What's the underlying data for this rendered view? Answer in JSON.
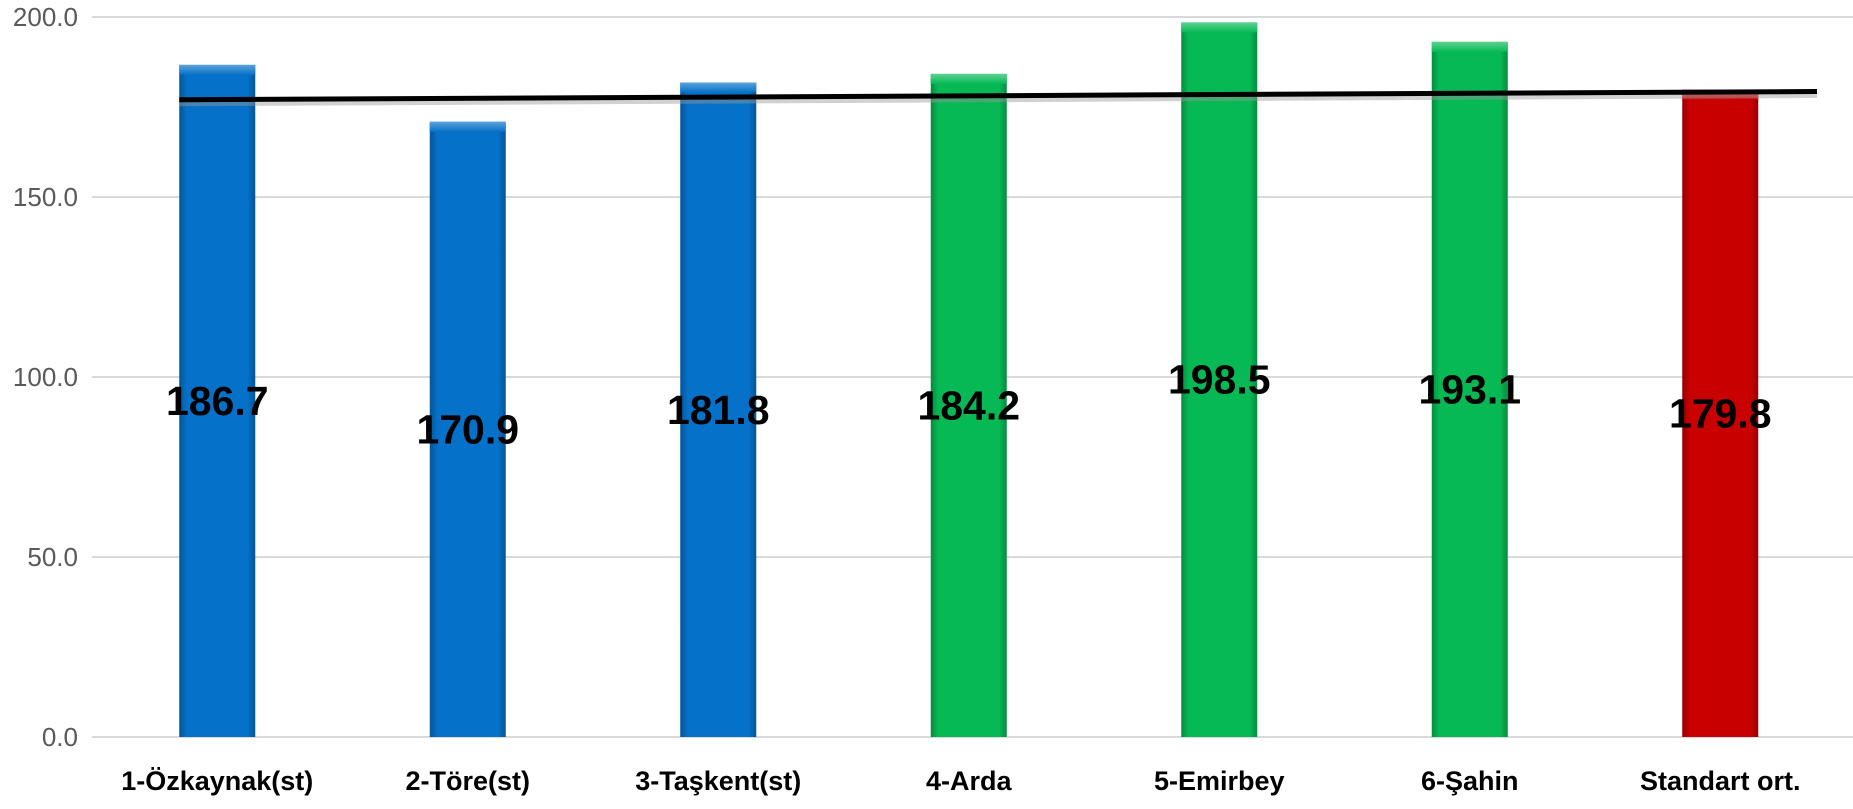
{
  "chart_data": {
    "type": "bar",
    "title": "",
    "xlabel": "",
    "ylabel": "",
    "ylim": [
      0,
      200
    ],
    "yticks": [
      "0.0",
      "50.0",
      "100.0",
      "150.0",
      "200.0"
    ],
    "grid": true,
    "legend": "none",
    "categories": [
      "1-Özkaynak(st)",
      "2-Töre(st)",
      "3-Taşkent(st)",
      "4-Arda",
      "5-Emirbey",
      "6-Şahin",
      "Standart ort."
    ],
    "values": [
      186.7,
      170.9,
      181.8,
      184.2,
      198.5,
      193.1,
      179.8
    ],
    "value_labels": [
      "186.7",
      "170.9",
      "181.8",
      "184.2",
      "198.5",
      "193.1",
      "179.8"
    ],
    "bar_colors": [
      "#0571c8",
      "#0571c8",
      "#0571c8",
      "#06b955",
      "#06b955",
      "#06b955",
      "#c90000"
    ],
    "trend_line": {
      "color": "#000000",
      "start_value": 177.0,
      "end_value": 179.3
    }
  }
}
